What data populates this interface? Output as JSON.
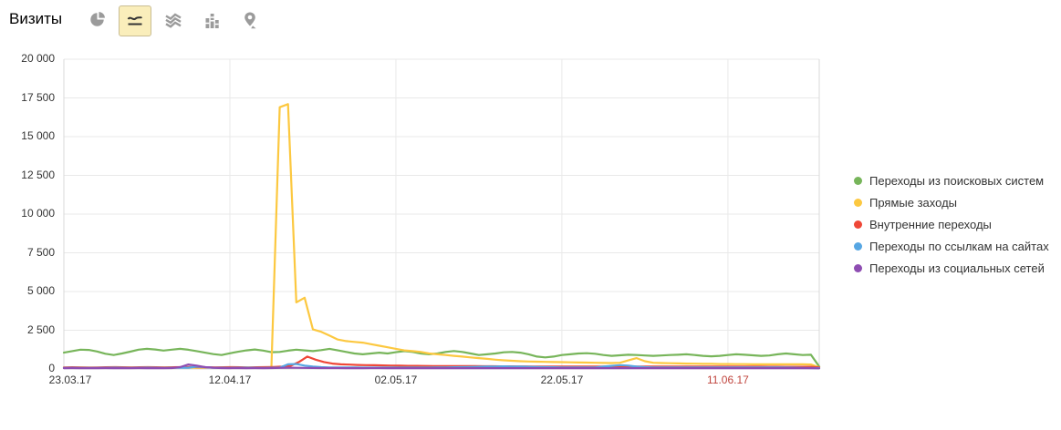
{
  "header": {
    "title": "Визиты"
  },
  "toolbar": {
    "buttons": [
      {
        "name": "pie-chart",
        "selected": false
      },
      {
        "name": "line-chart",
        "selected": true
      },
      {
        "name": "stacked-area",
        "selected": false
      },
      {
        "name": "columns",
        "selected": false
      },
      {
        "name": "geo-map",
        "selected": false
      }
    ]
  },
  "colors": {
    "grid": "#e9e9e9",
    "axis_border": "#d9d9d9",
    "zero_line": "#d5d5d5",
    "tick_label": "#333333",
    "holiday_label": "#c0453e",
    "selected_button_bg": "#faeebb",
    "selected_button_border": "#c9bd93",
    "icon_gray": "#9b9b9b",
    "icon_dark": "#333333"
  },
  "chart_data": {
    "type": "line",
    "title": "Визиты",
    "grid": true,
    "legend_position": "right",
    "y_axis": {
      "min": 0,
      "max": 20000,
      "tick_labels": [
        "20 000",
        "17 500",
        "15 000",
        "12 500",
        "10 000",
        "7 500",
        "5 000",
        "2 500",
        "0"
      ]
    },
    "x_ticks": [
      {
        "label": "23.03.17",
        "day": 0,
        "holiday": false
      },
      {
        "label": "12.04.17",
        "day": 20,
        "holiday": false
      },
      {
        "label": "02.05.17",
        "day": 40,
        "holiday": false
      },
      {
        "label": "22.05.17",
        "day": 60,
        "holiday": false
      },
      {
        "label": "11.06.17",
        "day": 80,
        "holiday": true
      }
    ],
    "x_range_days": 91,
    "series": [
      {
        "name": "Переходы из поисковых систем",
        "color": "#77b55a",
        "values": [
          1050,
          1150,
          1250,
          1230,
          1130,
          980,
          900,
          1000,
          1120,
          1250,
          1300,
          1260,
          1190,
          1250,
          1300,
          1240,
          1150,
          1050,
          960,
          900,
          1010,
          1110,
          1200,
          1260,
          1190,
          1080,
          1100,
          1180,
          1250,
          1200,
          1150,
          1220,
          1300,
          1200,
          1100,
          1000,
          950,
          1000,
          1050,
          1000,
          1080,
          1150,
          1100,
          1000,
          950,
          1000,
          1100,
          1160,
          1100,
          1000,
          900,
          950,
          1000,
          1075,
          1100,
          1050,
          950,
          800,
          750,
          800,
          900,
          950,
          1000,
          1020,
          980,
          900,
          850,
          880,
          920,
          900,
          870,
          850,
          870,
          900,
          920,
          950,
          900,
          850,
          820,
          850,
          900,
          950,
          920,
          880,
          850,
          870,
          950,
          1000,
          950,
          900,
          920,
          150
        ]
      },
      {
        "name": "Прямые заходы",
        "color": "#fcc840",
        "values": [
          80,
          90,
          100,
          90,
          80,
          70,
          80,
          90,
          100,
          90,
          80,
          90,
          100,
          110,
          100,
          90,
          80,
          90,
          100,
          90,
          80,
          90,
          100,
          90,
          80,
          120,
          16900,
          17100,
          4300,
          4600,
          2550,
          2400,
          2150,
          1900,
          1800,
          1750,
          1700,
          1600,
          1500,
          1400,
          1300,
          1200,
          1150,
          1100,
          1000,
          950,
          900,
          850,
          800,
          750,
          700,
          650,
          600,
          560,
          530,
          500,
          480,
          470,
          460,
          450,
          440,
          430,
          420,
          410,
          400,
          390,
          380,
          400,
          550,
          700,
          500,
          400,
          380,
          370,
          360,
          350,
          340,
          330,
          330,
          320,
          320,
          310,
          310,
          300,
          300,
          300,
          300,
          300,
          300,
          300,
          290,
          100
        ]
      },
      {
        "name": "Внутренние переходы",
        "color": "#ef4737",
        "values": [
          100,
          110,
          100,
          90,
          100,
          110,
          120,
          110,
          100,
          110,
          120,
          110,
          100,
          110,
          120,
          130,
          120,
          110,
          100,
          110,
          120,
          110,
          100,
          110,
          120,
          130,
          150,
          200,
          450,
          800,
          600,
          450,
          350,
          300,
          280,
          260,
          250,
          240,
          230,
          220,
          210,
          200,
          200,
          195,
          190,
          190,
          185,
          185,
          180,
          180,
          175,
          175,
          170,
          170,
          165,
          165,
          160,
          160,
          160,
          155,
          155,
          150,
          150,
          150,
          150,
          150,
          150,
          150,
          150,
          150,
          150,
          150,
          150,
          150,
          150,
          150,
          150,
          150,
          150,
          150,
          150,
          150,
          150,
          150,
          145,
          145,
          140,
          140,
          140,
          140,
          100
        ]
      },
      {
        "name": "Переходы по ссылкам на сайтах",
        "color": "#56a6e3",
        "values": [
          70,
          75,
          70,
          65,
          70,
          75,
          80,
          75,
          70,
          75,
          80,
          75,
          70,
          75,
          80,
          85,
          150,
          120,
          80,
          75,
          70,
          75,
          80,
          75,
          70,
          75,
          90,
          300,
          320,
          220,
          150,
          120,
          100,
          100,
          95,
          95,
          90,
          90,
          90,
          90,
          90,
          90,
          90,
          90,
          90,
          95,
          100,
          110,
          120,
          130,
          140,
          150,
          160,
          170,
          160,
          150,
          140,
          130,
          120,
          110,
          100,
          100,
          100,
          100,
          100,
          150,
          200,
          250,
          220,
          150,
          120,
          100,
          100,
          100,
          100,
          100,
          100,
          100,
          100,
          100,
          100,
          100,
          100,
          100,
          100,
          100,
          100,
          90,
          80,
          70,
          60,
          50
        ]
      },
      {
        "name": "Переходы из социальных сетей",
        "color": "#8e4db2",
        "values": [
          55,
          60,
          55,
          50,
          55,
          60,
          55,
          50,
          55,
          60,
          55,
          50,
          55,
          60,
          120,
          290,
          220,
          120,
          80,
          60,
          55,
          60,
          55,
          60,
          55,
          60,
          70,
          80,
          75,
          70,
          65,
          60,
          60,
          60,
          55,
          55,
          55,
          60,
          60,
          55,
          55,
          55,
          55,
          55,
          55,
          55,
          55,
          55,
          55,
          55,
          55,
          55,
          55,
          55,
          55,
          55,
          55,
          55,
          55,
          55,
          55,
          55,
          55,
          55,
          55,
          55,
          55,
          55,
          55,
          55,
          55,
          55,
          55,
          55,
          55,
          55,
          55,
          55,
          55,
          55,
          55,
          55,
          55,
          55,
          55,
          55,
          55,
          55,
          55,
          55,
          50,
          40
        ]
      }
    ]
  },
  "legend": {
    "items": [
      {
        "label": "Переходы из поисковых систем",
        "color": "#77b55a"
      },
      {
        "label": "Прямые заходы",
        "color": "#fcc840"
      },
      {
        "label": "Внутренние переходы",
        "color": "#ef4737"
      },
      {
        "label": "Переходы по ссылкам на сайтах",
        "color": "#56a6e3"
      },
      {
        "label": "Переходы из социальных сетей",
        "color": "#8e4db2"
      }
    ]
  }
}
